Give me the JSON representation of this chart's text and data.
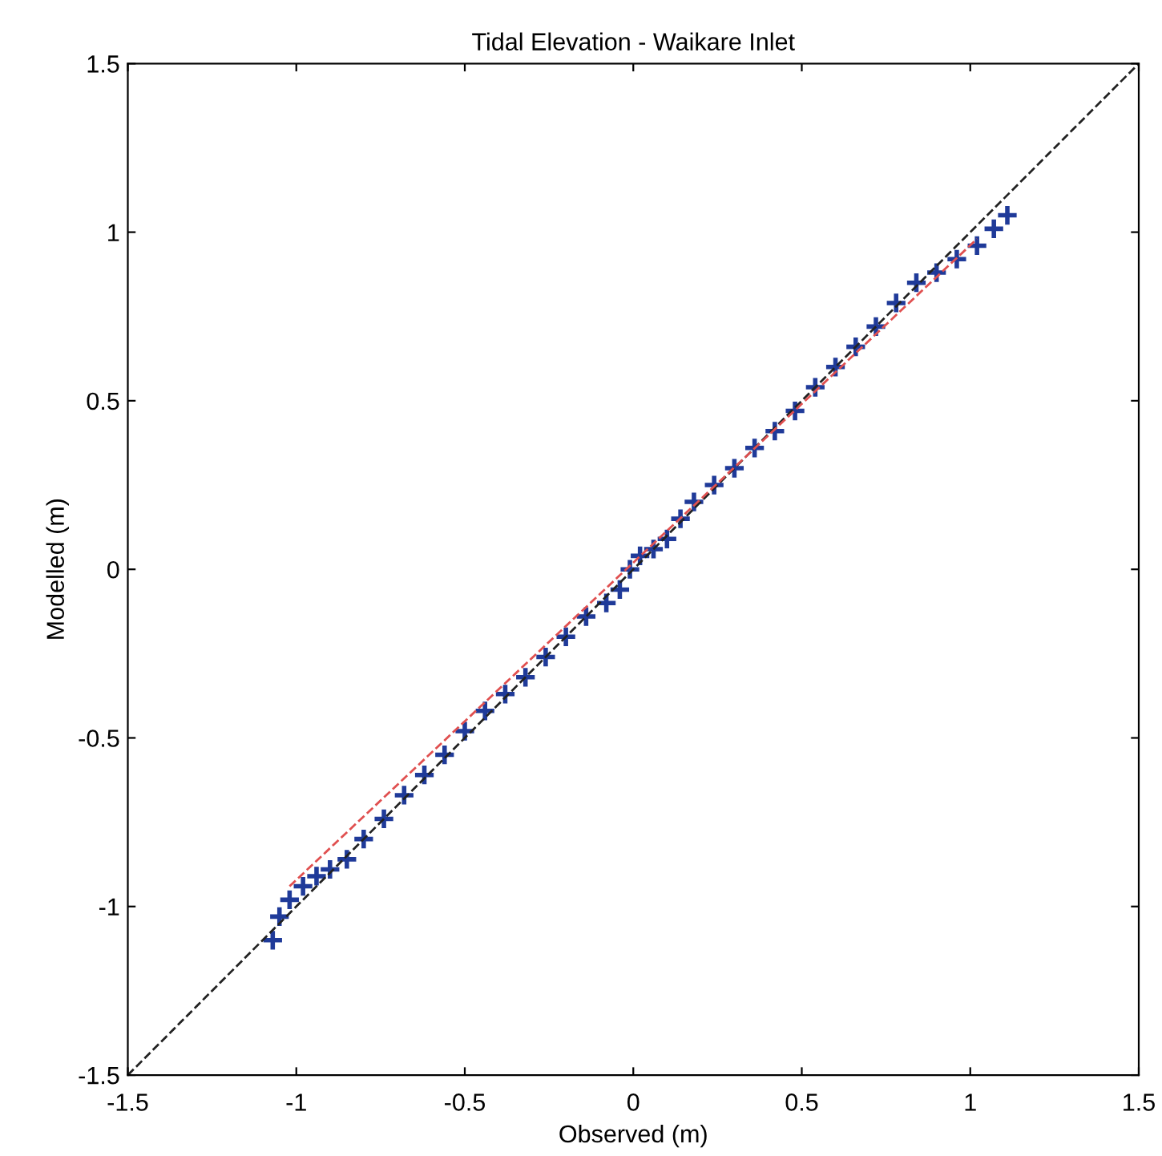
{
  "chart_data": {
    "type": "scatter",
    "title": "Tidal Elevation - Waikare Inlet",
    "xlabel": "Observed (m)",
    "ylabel": "Modelled (m)",
    "xlim": [
      -1.5,
      1.5
    ],
    "ylim": [
      -1.5,
      1.5
    ],
    "xticks": [
      -1.5,
      -1,
      -0.5,
      0,
      0.5,
      1,
      1.5
    ],
    "yticks": [
      -1.5,
      -1,
      -0.5,
      0,
      0.5,
      1,
      1.5
    ],
    "grid": false,
    "legend": false,
    "series": [
      {
        "type": "line",
        "color": "#222222",
        "line_style": "dashed",
        "marker": "none",
        "x": [
          -1.5,
          1.5
        ],
        "values": [
          -1.5,
          1.5
        ]
      },
      {
        "type": "line",
        "color": "#e05050",
        "line_style": "dashed",
        "marker": "none",
        "x": [
          -1.02,
          1.02
        ],
        "values": [
          -0.94,
          0.98
        ]
      },
      {
        "color": "#1f3a99",
        "marker": "cross",
        "x": [
          -1.07,
          -1.05,
          -1.02,
          -0.98,
          -0.94,
          -0.9,
          -0.85,
          -0.8,
          -0.74,
          -0.68,
          -0.62,
          -0.56,
          -0.5,
          -0.44,
          -0.38,
          -0.32,
          -0.26,
          -0.2,
          -0.14,
          -0.08,
          -0.04,
          -0.01,
          0.02,
          0.06,
          0.1,
          0.14,
          0.18,
          0.24,
          0.3,
          0.36,
          0.42,
          0.48,
          0.54,
          0.6,
          0.66,
          0.72,
          0.78,
          0.84,
          0.9,
          0.96,
          1.02,
          1.07,
          1.11
        ],
        "values": [
          -1.1,
          -1.03,
          -0.98,
          -0.94,
          -0.91,
          -0.89,
          -0.86,
          -0.8,
          -0.74,
          -0.67,
          -0.61,
          -0.55,
          -0.48,
          -0.42,
          -0.37,
          -0.32,
          -0.26,
          -0.2,
          -0.14,
          -0.1,
          -0.06,
          0.0,
          0.04,
          0.06,
          0.09,
          0.15,
          0.2,
          0.25,
          0.3,
          0.36,
          0.41,
          0.47,
          0.54,
          0.6,
          0.66,
          0.72,
          0.79,
          0.85,
          0.88,
          0.92,
          0.96,
          1.01,
          1.05
        ]
      }
    ]
  }
}
